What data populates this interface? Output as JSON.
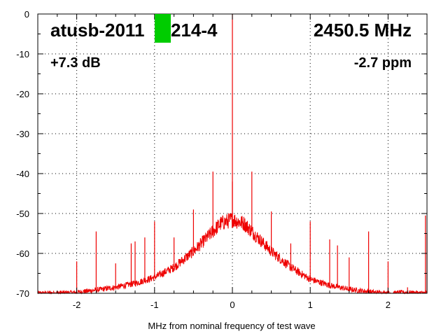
{
  "chart_data": {
    "type": "line",
    "xlabel": "MHz from nominal frequency of test wave",
    "ylabel": "",
    "xlim": [
      -2.5,
      2.5
    ],
    "ylim": [
      -70,
      0
    ],
    "x_ticks": [
      -2,
      -1,
      0,
      1,
      2
    ],
    "y_ticks": [
      0,
      -10,
      -20,
      -30,
      -40,
      -50,
      -60,
      -70
    ],
    "x_tick_labels": [
      "-2",
      "-1",
      "0",
      "1",
      "2"
    ],
    "y_tick_labels": [
      "0",
      "-10",
      "-20",
      "-30",
      "-40",
      "-50",
      "-60",
      "-70"
    ],
    "grid": true,
    "series_color": "#ee0000",
    "marker_color": "#00cc00",
    "annotations": {
      "device": "atusb-2011",
      "device_suffix": "214-4",
      "frequency": "2450.5 MHz",
      "gain": "+7.3 dB",
      "ppm": "-2.7 ppm"
    },
    "noise_envelope": {
      "x": [
        -2.5,
        -2.0,
        -1.8,
        -1.5,
        -1.25,
        -1.0,
        -0.75,
        -0.5,
        -0.3,
        -0.15,
        0.0,
        0.15,
        0.3,
        0.5,
        0.75,
        1.0,
        1.25,
        1.5,
        1.8,
        2.0,
        2.2,
        2.5
      ],
      "y": [
        -70,
        -69.8,
        -69.3,
        -68.5,
        -67.5,
        -66,
        -63.5,
        -59.5,
        -55.5,
        -52.5,
        -51.5,
        -52.5,
        -55.5,
        -59.5,
        -63.5,
        -66.5,
        -68,
        -69,
        -69.7,
        -70,
        -69.8,
        -70
      ]
    },
    "spurs": [
      {
        "x": 0.0,
        "y": 0
      },
      {
        "x": -0.25,
        "y": -39.5
      },
      {
        "x": 0.25,
        "y": -39.5
      },
      {
        "x": 0.0,
        "y": -42
      },
      {
        "x": -0.5,
        "y": -49
      },
      {
        "x": 0.5,
        "y": -49.5
      },
      {
        "x": -1.0,
        "y": -52
      },
      {
        "x": 1.0,
        "y": -52
      },
      {
        "x": -1.75,
        "y": -54.5
      },
      {
        "x": 1.75,
        "y": -54.5
      },
      {
        "x": -0.75,
        "y": -56
      },
      {
        "x": 0.75,
        "y": -57.5
      },
      {
        "x": -1.25,
        "y": -57
      },
      {
        "x": 1.25,
        "y": -56.5
      },
      {
        "x": -1.3,
        "y": -57.5
      },
      {
        "x": -1.125,
        "y": -56
      },
      {
        "x": 1.35,
        "y": -58
      },
      {
        "x": -1.5,
        "y": -62.5
      },
      {
        "x": 1.5,
        "y": -61
      },
      {
        "x": -2.0,
        "y": -62
      },
      {
        "x": 2.0,
        "y": -62
      },
      {
        "x": -1.9,
        "y": -69
      },
      {
        "x": 2.25,
        "y": -68.5
      },
      {
        "x": 2.48,
        "y": -50.5
      },
      {
        "x": 2.5,
        "y": -55
      }
    ]
  }
}
